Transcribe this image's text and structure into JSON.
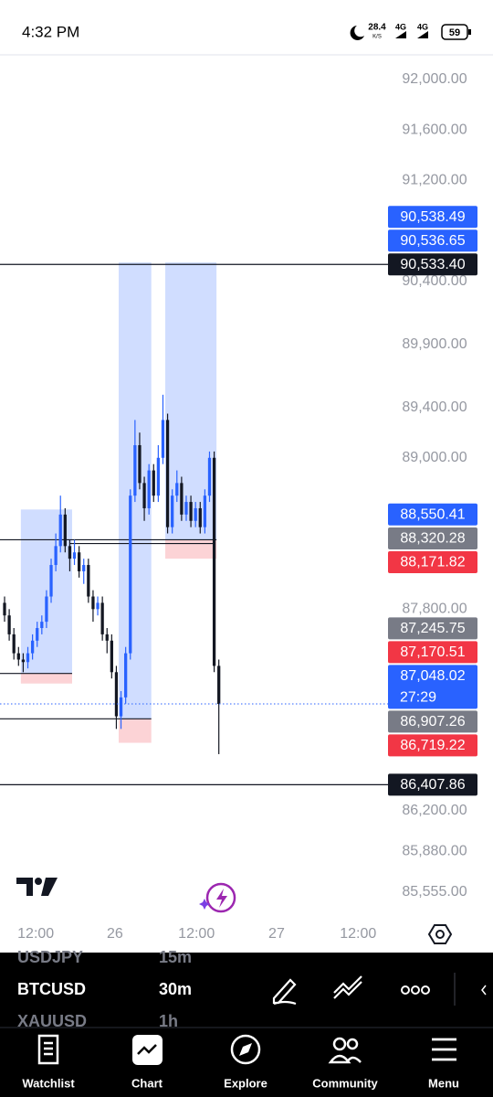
{
  "status_bar": {
    "time": "4:32 PM",
    "speed": "28.4",
    "speed_unit": "K/S",
    "network": [
      "4G",
      "4G"
    ],
    "battery": "59"
  },
  "chart_data": {
    "type": "candlestick",
    "ylim": [
      85381,
      92181
    ],
    "yticks": [
      {
        "value": 92000,
        "label": "92,000.00"
      },
      {
        "value": 91600,
        "label": "91,600.00"
      },
      {
        "value": 91200,
        "label": "91,200.00"
      },
      {
        "value": 90400,
        "label": "90,400.00"
      },
      {
        "value": 89900,
        "label": "89,900.00"
      },
      {
        "value": 89400,
        "label": "89,400.00"
      },
      {
        "value": 89000,
        "label": "89,000.00"
      },
      {
        "value": 87800,
        "label": "87,800.00"
      },
      {
        "value": 86200,
        "label": "86,200.00"
      },
      {
        "value": 85880,
        "label": "85,880.00"
      },
      {
        "value": 85555,
        "label": "85,555.00"
      }
    ],
    "xlim": [
      -0.98,
      83.3
    ],
    "xticks": [
      {
        "value": 6.7,
        "label": "12:00"
      },
      {
        "value": 23.7,
        "label": "26"
      },
      {
        "value": 41.2,
        "label": "12:00"
      },
      {
        "value": 58.4,
        "label": "27"
      },
      {
        "value": 75.9,
        "label": "12:00"
      }
    ],
    "up_color": "#2962ff",
    "down_color": "#131722",
    "ohlc": [
      [
        87850,
        87900,
        87700,
        87750
      ],
      [
        87750,
        87800,
        87550,
        87600
      ],
      [
        87600,
        87650,
        87400,
        87450
      ],
      [
        87450,
        87500,
        87350,
        87400
      ],
      [
        87400,
        87450,
        87300,
        87380
      ],
      [
        87380,
        87500,
        87330,
        87450
      ],
      [
        87450,
        87600,
        87400,
        87550
      ],
      [
        87550,
        87700,
        87500,
        87650
      ],
      [
        87650,
        87750,
        87600,
        87700
      ],
      [
        87700,
        87950,
        87650,
        87900
      ],
      [
        87900,
        88200,
        87850,
        88150
      ],
      [
        88150,
        88400,
        88100,
        88300
      ],
      [
        88300,
        88700,
        88250,
        88550
      ],
      [
        88550,
        88600,
        88250,
        88300
      ],
      [
        88300,
        88350,
        88100,
        88200
      ],
      [
        88200,
        88350,
        88150,
        88250
      ],
      [
        88250,
        88300,
        88050,
        88100
      ],
      [
        88100,
        88200,
        88000,
        88150
      ],
      [
        88150,
        88200,
        87850,
        87900
      ],
      [
        87900,
        87950,
        87700,
        87800
      ],
      [
        87800,
        87900,
        87750,
        87850
      ],
      [
        87850,
        87900,
        87550,
        87600
      ],
      [
        87600,
        87650,
        87450,
        87550
      ],
      [
        87550,
        87600,
        87250,
        87300
      ],
      [
        87300,
        87350,
        86850,
        86950
      ],
      [
        86950,
        87150,
        86850,
        87100
      ],
      [
        87100,
        87500,
        87050,
        87450
      ],
      [
        87450,
        88750,
        87400,
        88700
      ],
      [
        88700,
        89300,
        88650,
        89100
      ],
      [
        89100,
        89200,
        88750,
        88800
      ],
      [
        88800,
        88850,
        88500,
        88600
      ],
      [
        88600,
        88950,
        88550,
        88900
      ],
      [
        88900,
        88950,
        88650,
        88700
      ],
      [
        88700,
        89100,
        88650,
        89000
      ],
      [
        89000,
        89500,
        88950,
        89300
      ],
      [
        89300,
        89350,
        88400,
        88450
      ],
      [
        88450,
        88750,
        88400,
        88700
      ],
      [
        88700,
        88900,
        88650,
        88800
      ],
      [
        88800,
        88850,
        88500,
        88550
      ],
      [
        88550,
        88700,
        88500,
        88650
      ],
      [
        88650,
        88700,
        88450,
        88500
      ],
      [
        88500,
        88650,
        88450,
        88600
      ],
      [
        88600,
        88650,
        88400,
        88450
      ],
      [
        88450,
        88750,
        88400,
        88700
      ],
      [
        88700,
        89050,
        88650,
        89000
      ],
      [
        89000,
        89050,
        87300,
        87350
      ],
      [
        87350,
        87400,
        86650,
        87048.02
      ]
    ],
    "positions": [
      {
        "from": 4,
        "to": 14,
        "target": 88590,
        "entry": 87290,
        "stop": 87210
      },
      {
        "from": 25,
        "to": 31,
        "target": 90550,
        "entry": 86930,
        "stop": 86740
      },
      {
        "from": 35,
        "to": 45,
        "target": 90550,
        "entry": 88350,
        "stop": 88200
      }
    ],
    "levels": [
      90533.4,
      86407.86
    ],
    "segments": [
      {
        "value": 88320.28,
        "from": 14,
        "to": 45
      }
    ],
    "price_tags": [
      {
        "value": 90538.49,
        "label": "90,538.49",
        "color": "#2962ff"
      },
      {
        "value": 90536.65,
        "label": "90,536.65",
        "color": "#2962ff"
      },
      {
        "value": 90533.4,
        "label": "90,533.40",
        "color": "#131722"
      },
      {
        "value": 88550.41,
        "label": "88,550.41",
        "color": "#2962ff"
      },
      {
        "value": 88320.28,
        "label": "88,320.28",
        "color": "#787b86"
      },
      {
        "value": 88171.82,
        "label": "88,171.82",
        "color": "#f23645"
      },
      {
        "value": 87245.75,
        "label": "87,245.75",
        "color": "#787b86"
      },
      {
        "value": 87170.51,
        "label": "87,170.51",
        "color": "#f23645"
      },
      {
        "value": 87048.02,
        "label": "87,048.02",
        "color": "#2962ff",
        "countdown": "27:29"
      },
      {
        "value": 86907.26,
        "label": "86,907.26",
        "color": "#787b86"
      },
      {
        "value": 86719.22,
        "label": "86,719.22",
        "color": "#f23645"
      },
      {
        "value": 86407.86,
        "label": "86,407.86",
        "color": "#131722"
      }
    ]
  },
  "symbols": [
    {
      "symbol": "USDJPY",
      "interval": "15m"
    },
    {
      "symbol": "BTCUSD",
      "interval": "30m"
    },
    {
      "symbol": "XAUUSD",
      "interval": "1h"
    }
  ],
  "nav": [
    "Watchlist",
    "Chart",
    "Explore",
    "Community",
    "Menu"
  ]
}
